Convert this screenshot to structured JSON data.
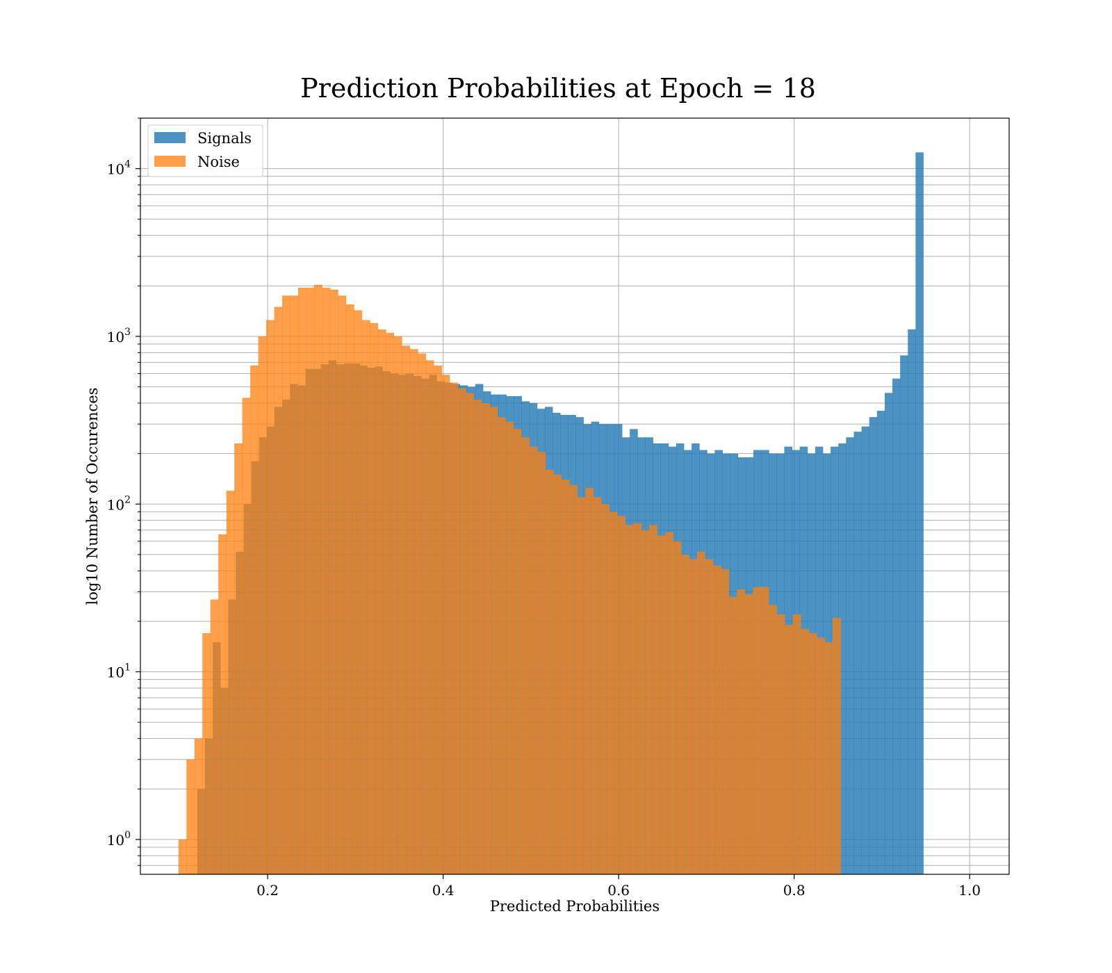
{
  "chart_data": {
    "type": "bar",
    "title": "Prediction Probabilities at Epoch = 18",
    "xlabel": "Predicted Probabilities",
    "ylabel": "log10 Number of Occurences",
    "xlim": [
      0.055,
      1.045
    ],
    "ylim": [
      0.62,
      20000
    ],
    "yscale": "log",
    "grid": true,
    "legend_position": "top-left",
    "x_ticks": [
      0.2,
      0.4,
      0.6,
      0.8,
      1.0
    ],
    "x_tick_labels": [
      "0.2",
      "0.4",
      "0.6",
      "0.8",
      "1.0"
    ],
    "y_ticks": [
      1,
      10,
      100,
      1000,
      10000
    ],
    "y_tick_labels": [
      {
        "base": "10",
        "exp": "0"
      },
      {
        "base": "10",
        "exp": "1"
      },
      {
        "base": "10",
        "exp": "2"
      },
      {
        "base": "10",
        "exp": "3"
      },
      {
        "base": "10",
        "exp": "4"
      }
    ],
    "series": [
      {
        "name": "Signals",
        "color": "#1f77b4",
        "alpha": 0.8,
        "bin_start": 0.1198,
        "bin_width": 0.008802,
        "values": [
          2,
          4,
          15,
          8,
          27,
          52,
          100,
          180,
          250,
          290,
          380,
          420,
          520,
          510,
          640,
          640,
          680,
          720,
          680,
          690,
          690,
          670,
          650,
          660,
          620,
          600,
          590,
          600,
          580,
          560,
          590,
          540,
          530,
          520,
          510,
          500,
          520,
          470,
          450,
          450,
          440,
          440,
          410,
          400,
          370,
          380,
          350,
          340,
          340,
          330,
          300,
          310,
          300,
          300,
          300,
          250,
          280,
          250,
          250,
          230,
          230,
          220,
          230,
          210,
          230,
          210,
          200,
          210,
          200,
          200,
          190,
          190,
          210,
          210,
          200,
          200,
          220,
          210,
          220,
          200,
          220,
          200,
          220,
          230,
          250,
          270,
          290,
          330,
          360,
          460,
          560,
          770,
          1100,
          12500
        ]
      },
      {
        "name": "Noise",
        "color": "#ff7f0e",
        "alpha": 0.75,
        "bin_start": 0.0984,
        "bin_width": 0.009091,
        "values": [
          1,
          3,
          4,
          17,
          27,
          66,
          120,
          230,
          430,
          670,
          1000,
          1250,
          1500,
          1750,
          1750,
          1950,
          1950,
          2030,
          1950,
          1900,
          1750,
          1550,
          1430,
          1250,
          1200,
          1100,
          1050,
          1000,
          880,
          840,
          790,
          720,
          670,
          590,
          530,
          490,
          460,
          420,
          400,
          380,
          330,
          310,
          280,
          250,
          220,
          205,
          160,
          150,
          140,
          130,
          110,
          125,
          110,
          100,
          90,
          85,
          75,
          77,
          70,
          75,
          65,
          68,
          60,
          50,
          47,
          52,
          47,
          43,
          41,
          28,
          31,
          29,
          32,
          32,
          25,
          22,
          19,
          22,
          18,
          17,
          16,
          15,
          21
        ]
      }
    ]
  }
}
